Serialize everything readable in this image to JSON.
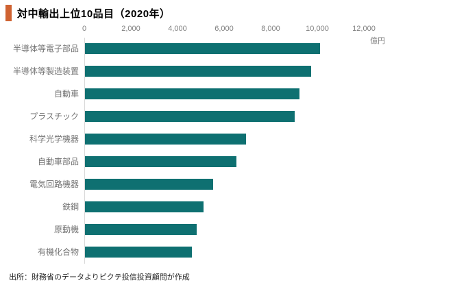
{
  "title": {
    "text": "対中輸出上位10品目（2020年）"
  },
  "footer": {
    "source": "出所：財務省のデータよりピクテ投信投資顧問が作成"
  },
  "colors": {
    "accent": "#cf6231",
    "bar": "#0e7071",
    "axis_text": "#808080",
    "label_text": "#737373",
    "axis_line": "#d9d9d9",
    "title_text": "#000000"
  },
  "chart_data": {
    "type": "bar",
    "orientation": "horizontal",
    "title": "対中輸出上位10品目（2020年）",
    "unit": "億円",
    "xlabel": "億円",
    "ylabel": "",
    "categories": [
      "半導体等電子部品",
      "半導体等製造装置",
      "自動車",
      "プラスチック",
      "科学光学機器",
      "自動車部品",
      "電気回路機器",
      "鉄鋼",
      "原動機",
      "有機化合物"
    ],
    "values": [
      10100,
      9700,
      9200,
      9000,
      6900,
      6500,
      5500,
      5100,
      4800,
      4600
    ],
    "xlim": [
      0,
      12000
    ],
    "xticks": [
      0,
      2000,
      4000,
      6000,
      8000,
      10000,
      12000
    ],
    "xtick_labels": [
      "0",
      "2,000",
      "4,000",
      "6,000",
      "8,000",
      "10,000",
      "12,000"
    ],
    "grid": false,
    "legend": false,
    "bar_color": "#0e7071",
    "axis_position": "top"
  }
}
